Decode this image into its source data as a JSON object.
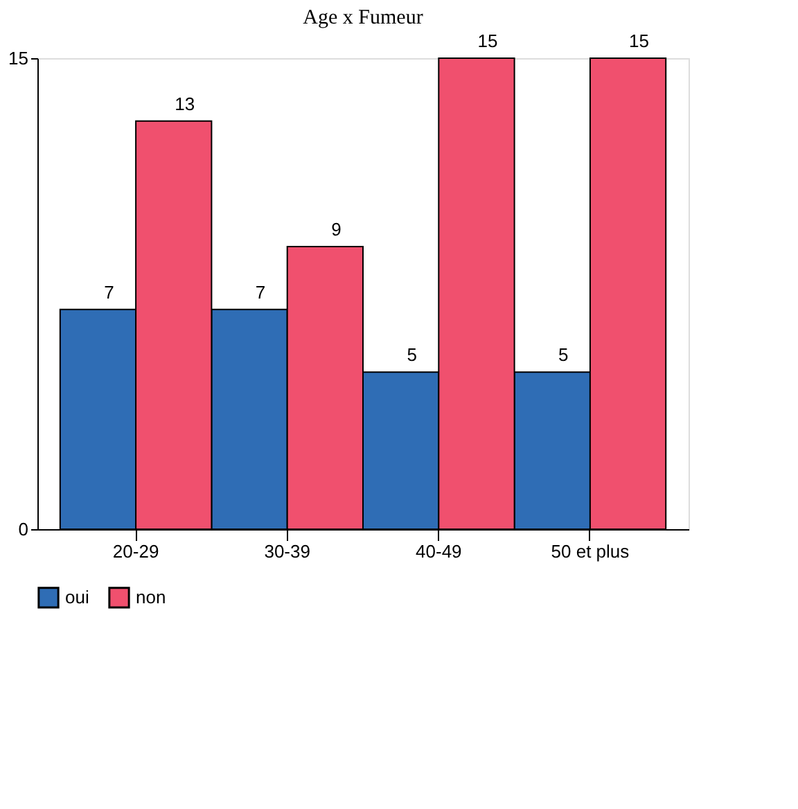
{
  "chart_data": {
    "type": "bar",
    "title": "Age x Fumeur",
    "categories": [
      "20-29",
      "30-39",
      "40-49",
      "50 et plus"
    ],
    "series": [
      {
        "name": "oui",
        "color": "#2f6db5",
        "values": [
          7,
          7,
          5,
          5
        ]
      },
      {
        "name": "non",
        "color": "#f0506e",
        "values": [
          13,
          9,
          15,
          15
        ]
      }
    ],
    "ylim": [
      0,
      15
    ],
    "yticks": [
      0,
      15
    ],
    "grid": false,
    "legend": "bottom",
    "data_labels": true
  }
}
